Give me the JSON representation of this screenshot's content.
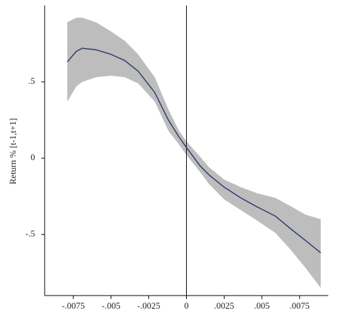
{
  "chart_data": {
    "type": "band-line",
    "y_label": "Return % [t-1,t+1]",
    "x": [
      -0.0079,
      -0.0073,
      -0.0069,
      -0.006,
      -0.005,
      -0.0041,
      -0.0032,
      -0.0021,
      -0.0012,
      -0.0005,
      0,
      0.0009,
      0.0015,
      0.0025,
      0.0036,
      0.0047,
      0.0059,
      0.007,
      0.0079,
      0.0089
    ],
    "values": [
      0.63,
      0.7,
      0.72,
      0.71,
      0.68,
      0.64,
      0.57,
      0.43,
      0.25,
      0.14,
      0.07,
      -0.05,
      -0.11,
      -0.19,
      -0.26,
      -0.32,
      -0.38,
      -0.47,
      -0.54,
      -0.62
    ],
    "band_upper": [
      0.89,
      0.92,
      0.92,
      0.89,
      0.83,
      0.77,
      0.68,
      0.53,
      0.32,
      0.18,
      0.11,
      0.01,
      -0.06,
      -0.14,
      -0.19,
      -0.23,
      -0.26,
      -0.32,
      -0.37,
      -0.4
    ],
    "band_lower": [
      0.37,
      0.47,
      0.5,
      0.53,
      0.54,
      0.53,
      0.49,
      0.37,
      0.18,
      0.09,
      0.02,
      -0.09,
      -0.17,
      -0.27,
      -0.34,
      -0.41,
      -0.49,
      -0.61,
      -0.72,
      -0.85
    ],
    "color": "#2e3a6e",
    "band_color": "#bdbdbd",
    "vline_x": 0,
    "xlim": [
      -0.0094,
      0.0094
    ],
    "ylim": [
      -0.9,
      1.0
    ],
    "xticks": [
      {
        "value": -0.0075,
        "label": "-.0075"
      },
      {
        "value": -0.005,
        "label": "-.005"
      },
      {
        "value": -0.0025,
        "label": "-.0025"
      },
      0,
      {
        "value": 0.0025,
        "label": ".0025"
      },
      {
        "value": 0.005,
        "label": ".005"
      },
      {
        "value": 0.0075,
        "label": ".0075"
      }
    ],
    "yticks": [
      {
        "value": 0.5,
        "label": ".5"
      },
      0,
      {
        "value": -0.5,
        "label": "-.5"
      }
    ]
  }
}
